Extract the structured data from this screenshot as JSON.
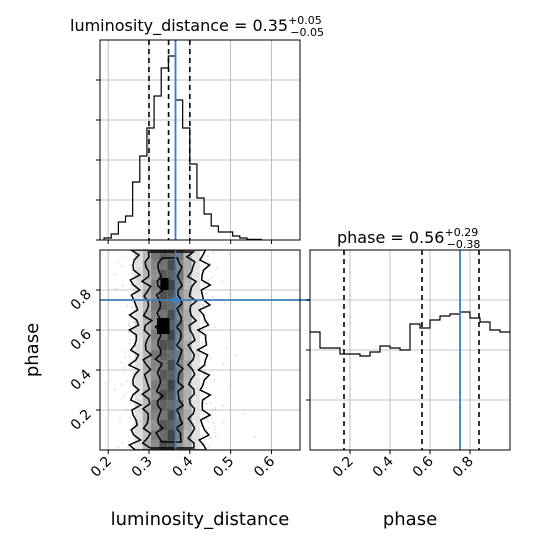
{
  "chart_data": {
    "type": "corner",
    "parameters": [
      "luminosity_distance",
      "phase"
    ],
    "axis_labels": {
      "x_left": "luminosity_distance",
      "x_right": "phase",
      "y_left": "phase"
    },
    "injection": {
      "luminosity_distance": 0.365,
      "phase": 0.75
    },
    "colors": {
      "injection": "#3d7ebf",
      "hist": "#000000",
      "grid": "#b0b0b0",
      "samples": "#808080"
    },
    "grid": true,
    "panels": [
      {
        "id": "ld-hist",
        "type": "histogram",
        "title_prefix": "luminosity_distance = 0.35",
        "title_sup": "+0.05",
        "title_sub": "−0.05",
        "xlim": [
          0.18,
          0.67
        ],
        "ylim": [
          0,
          1.0
        ],
        "quantiles": [
          0.3,
          0.348,
          0.4
        ],
        "bin_edges": [
          0.19,
          0.2075,
          0.225,
          0.2425,
          0.26,
          0.2775,
          0.295,
          0.3125,
          0.33,
          0.3475,
          0.365,
          0.3825,
          0.4,
          0.4175,
          0.435,
          0.4525,
          0.47,
          0.4875,
          0.505,
          0.5225,
          0.54,
          0.5575,
          0.575
        ],
        "counts": [
          0.01,
          0.03,
          0.09,
          0.12,
          0.29,
          0.42,
          0.56,
          0.72,
          0.86,
          0.92,
          0.7,
          0.56,
          0.38,
          0.21,
          0.13,
          0.07,
          0.04,
          0.04,
          0.02,
          0.01,
          0.003,
          0.003
        ],
        "xticks": [
          0.2,
          0.3,
          0.4,
          0.5,
          0.6
        ],
        "yticks": [
          0,
          0.2,
          0.4,
          0.6,
          0.8
        ]
      },
      {
        "id": "phase-hist",
        "type": "histogram",
        "title_prefix": "phase = 0.56",
        "title_sup": "+0.29",
        "title_sub": "−0.38",
        "xlim": [
          0,
          1.0
        ],
        "ylim": [
          0,
          1.0
        ],
        "quantiles": [
          0.17,
          0.56,
          0.845
        ],
        "bin_edges": [
          0.0,
          0.05,
          0.1,
          0.15,
          0.2,
          0.25,
          0.3,
          0.35,
          0.4,
          0.45,
          0.5,
          0.55,
          0.6,
          0.65,
          0.7,
          0.75,
          0.8,
          0.85,
          0.9,
          0.95,
          1.0
        ],
        "counts": [
          0.59,
          0.51,
          0.51,
          0.48,
          0.48,
          0.47,
          0.49,
          0.52,
          0.51,
          0.5,
          0.63,
          0.61,
          0.65,
          0.67,
          0.68,
          0.69,
          0.66,
          0.64,
          0.6,
          0.59
        ],
        "xticks": [
          0.2,
          0.4,
          0.6,
          0.8
        ],
        "xtick_labels": [
          "0.2",
          "0.4",
          "0.6",
          "0.8"
        ],
        "yticks": [
          0.25,
          0.5,
          0.75
        ]
      },
      {
        "id": "joint",
        "type": "2d-density",
        "xlim": [
          0.18,
          0.67
        ],
        "ylim": [
          0,
          1.0
        ],
        "xticks": [
          0.2,
          0.3,
          0.4,
          0.5,
          0.6
        ],
        "xtick_labels": [
          "0.2",
          "0.3",
          "0.4",
          "0.5",
          "0.6"
        ],
        "yticks": [
          0.2,
          0.4,
          0.6,
          0.8
        ],
        "ytick_labels": [
          "0.2",
          "0.4",
          "0.6",
          "0.8"
        ],
        "density_columns": [
          {
            "x": [
              0.265,
              0.285
            ],
            "shade": "#d8d8d8"
          },
          {
            "x": [
              0.285,
              0.305
            ],
            "shade": "#a8a8a8"
          },
          {
            "x": [
              0.305,
              0.325
            ],
            "shade": "#707070"
          },
          {
            "x": [
              0.325,
              0.345
            ],
            "shade": "#484848"
          },
          {
            "x": [
              0.345,
              0.365
            ],
            "shade": "#3a3a3a"
          },
          {
            "x": [
              0.365,
              0.385
            ],
            "shade": "#6c6c6c"
          },
          {
            "x": [
              0.385,
              0.405
            ],
            "shade": "#a6a6a6"
          },
          {
            "x": [
              0.405,
              0.425
            ],
            "shade": "#dedede"
          }
        ],
        "contours": [
          {
            "x_center": 0.35,
            "half_width": 0.025,
            "y_range": [
              0.04,
              0.96
            ],
            "wiggle": 0.006
          },
          {
            "x_center": 0.35,
            "half_width": 0.055,
            "y_range": [
              0.01,
              0.99
            ],
            "wiggle": 0.008
          },
          {
            "x_center": 0.35,
            "half_width": 0.085,
            "y_range": [
              0.0,
              1.0
            ],
            "wiggle": 0.01
          }
        ],
        "hot_spots": [
          {
            "x": 0.335,
            "y": 0.62,
            "w": 0.03,
            "h": 0.08
          },
          {
            "x": 0.338,
            "y": 0.83,
            "w": 0.02,
            "h": 0.06
          }
        ]
      }
    ]
  }
}
